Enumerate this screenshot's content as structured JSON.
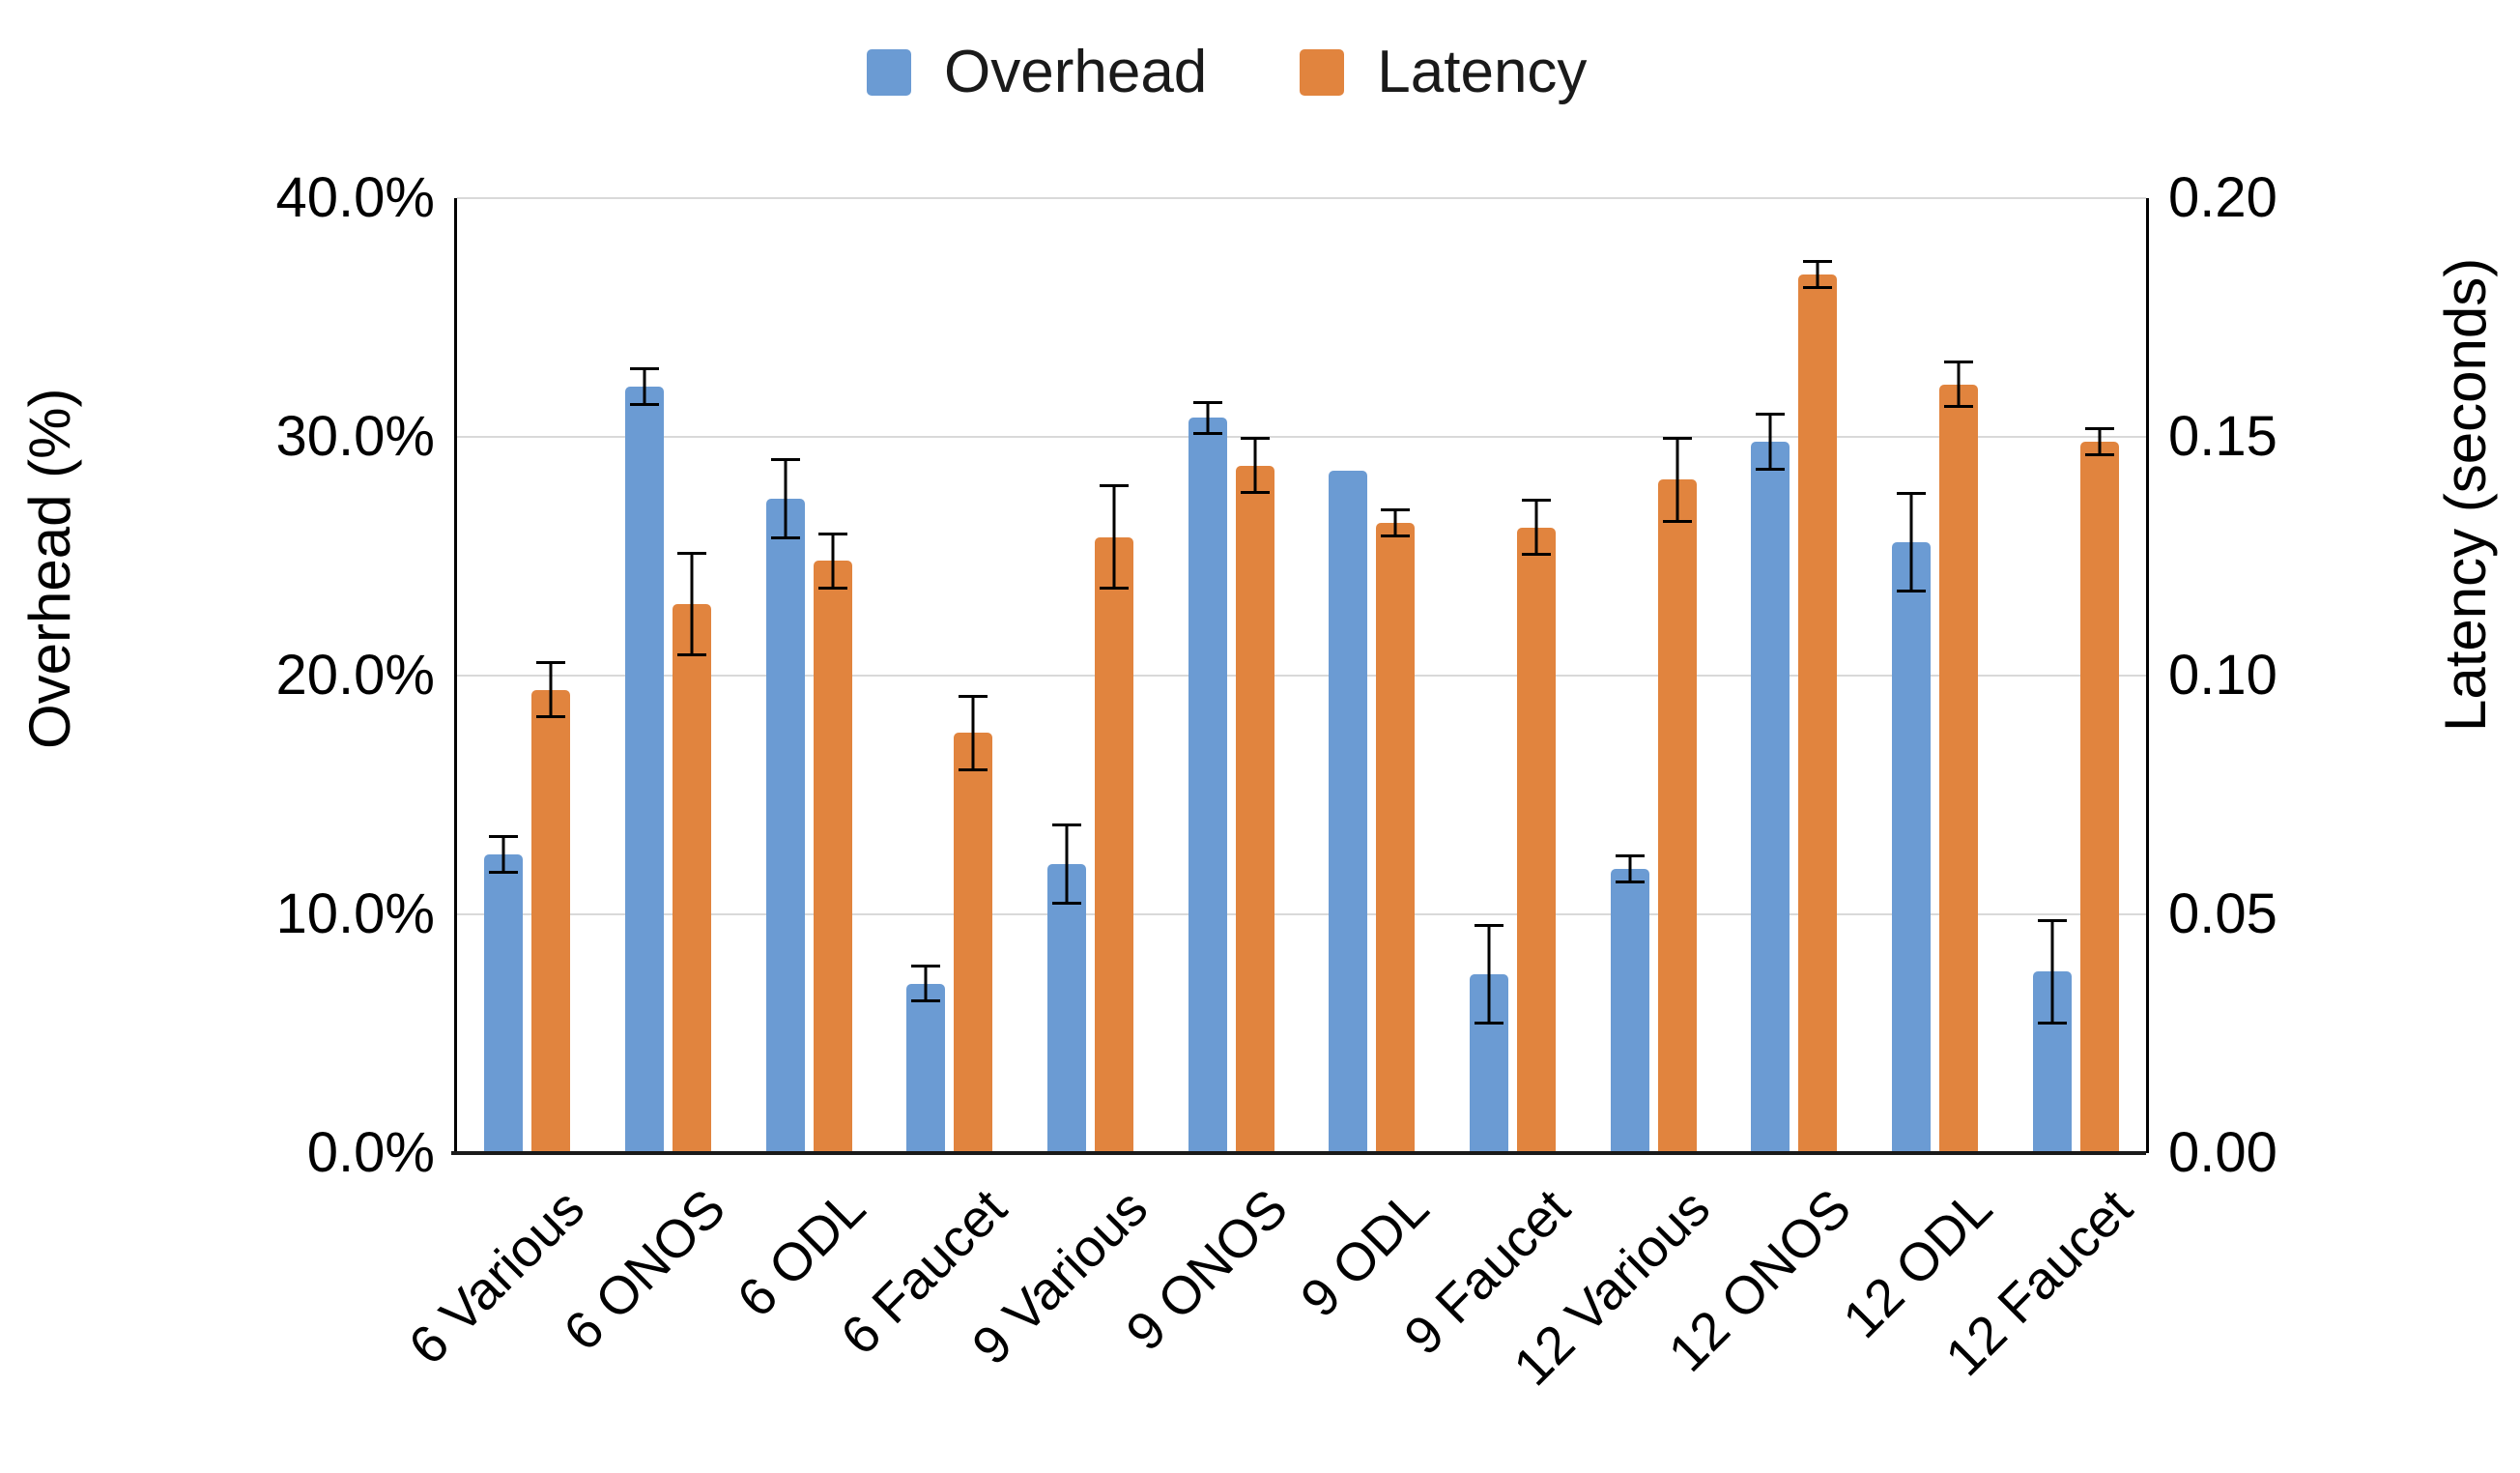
{
  "chart_data": {
    "type": "bar",
    "title": "",
    "legend_position": "top",
    "grid": true,
    "categories": [
      "6 Various",
      "6 ONOS",
      "6 ODL",
      "6 Faucet",
      "9 Various",
      "9 ONOS",
      "9 ODL",
      "9 Faucet",
      "12 Various",
      "12 ONOS",
      "12 ODL",
      "12 Faucet"
    ],
    "series": [
      {
        "name": "Overhead",
        "axis": "left",
        "unit": "%",
        "color": "#6B9BD3",
        "values": [
          12.5,
          32.1,
          27.4,
          7.1,
          12.1,
          30.8,
          28.6,
          7.5,
          11.9,
          29.8,
          25.6,
          7.6
        ],
        "errors": [
          0.8,
          0.8,
          1.7,
          0.8,
          1.7,
          0.7,
          0,
          2.1,
          0.6,
          1.2,
          2.1,
          2.2
        ]
      },
      {
        "name": "Latency",
        "axis": "right",
        "unit": "seconds",
        "color": "#E1843E",
        "values": [
          0.097,
          0.115,
          0.124,
          0.088,
          0.129,
          0.144,
          0.132,
          0.131,
          0.141,
          0.184,
          0.161,
          0.149
        ],
        "errors": [
          0.006,
          0.011,
          0.006,
          0.008,
          0.011,
          0.006,
          0.003,
          0.006,
          0.009,
          0.003,
          0.005,
          0.003
        ]
      }
    ],
    "left_axis": {
      "label": "Overhead (%)",
      "min": 0,
      "max": 40,
      "ticks": [
        "40.0%",
        "30.0%",
        "20.0%",
        "10.0%",
        "0.0%"
      ]
    },
    "right_axis": {
      "label": "Latency (seconds)",
      "min": 0,
      "max": 0.2,
      "ticks": [
        "0.20",
        "0.15",
        "0.10",
        "0.05",
        "0.00"
      ]
    },
    "colors": {
      "gridline": "#d9d9d9",
      "axis_line": "#1a1a1a",
      "text": "#000000"
    }
  }
}
